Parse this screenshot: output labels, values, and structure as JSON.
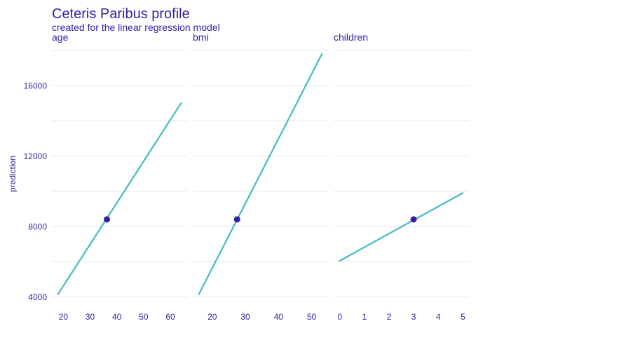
{
  "title": "Ceteris Paribus profile",
  "subtitle": "created for the linear regression model",
  "colors": {
    "text": "#371ea3",
    "line": "#46bac2",
    "point": "#371ea3",
    "grid": "#e6e6e6"
  },
  "chart_data": {
    "type": "line",
    "ylabel": "prediction",
    "ylim": [
      4000,
      18000
    ],
    "yticks": [
      4000,
      8000,
      12000,
      16000
    ],
    "panels": [
      {
        "name": "age",
        "xlim": [
          18,
          64
        ],
        "xticks": [
          20,
          30,
          40,
          50,
          60
        ],
        "x": [
          18,
          64
        ],
        "y": [
          4150,
          15000
        ],
        "point": {
          "x": 36.3,
          "y": 8400
        }
      },
      {
        "name": "bmi",
        "xlim": [
          15.96,
          53.13
        ],
        "xticks": [
          20,
          30,
          40,
          50
        ],
        "x": [
          15.96,
          53.13
        ],
        "y": [
          4150,
          17800
        ],
        "point": {
          "x": 27.5,
          "y": 8400
        }
      },
      {
        "name": "children",
        "xlim": [
          0,
          5
        ],
        "xticks": [
          0,
          1,
          2,
          3,
          4,
          5
        ],
        "x": [
          0,
          5
        ],
        "y": [
          6050,
          9900
        ],
        "point": {
          "x": 3,
          "y": 8400
        }
      }
    ]
  }
}
